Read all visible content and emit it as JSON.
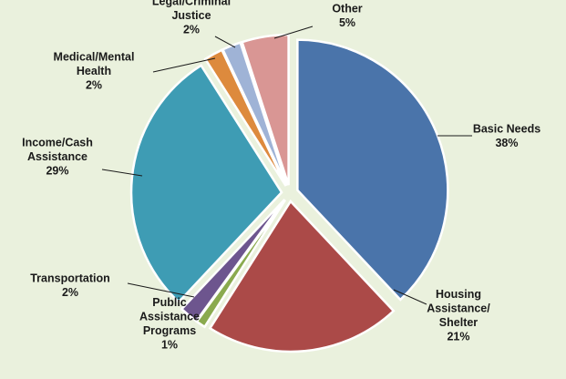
{
  "chart_data": {
    "type": "pie",
    "exploded": true,
    "slices": [
      {
        "name": "Basic Needs",
        "label_lines": [
          "Basic Needs",
          "38%"
        ],
        "value": 38,
        "color": "#4a74aa"
      },
      {
        "name": "Housing Assistance/ Shelter",
        "label_lines": [
          "Housing",
          "Assistance/",
          "Shelter",
          "21%"
        ],
        "value": 21,
        "color": "#ab4a48"
      },
      {
        "name": "Public Assistance Programs",
        "label_lines": [
          "Public",
          "Assistance",
          "Programs",
          "1%"
        ],
        "value": 1,
        "color": "#8aaa4e"
      },
      {
        "name": "Transportation",
        "label_lines": [
          "Transportation",
          "2%"
        ],
        "value": 2,
        "color": "#6d558e"
      },
      {
        "name": "Income/Cash Assistance",
        "label_lines": [
          "Income/Cash",
          "Assistance",
          "29%"
        ],
        "value": 29,
        "color": "#3e9cb4"
      },
      {
        "name": "Medical/Mental Health",
        "label_lines": [
          "Medical/Mental",
          "Health",
          "2%"
        ],
        "value": 2,
        "color": "#dd8a3d"
      },
      {
        "name": "Legal/Criminal Justice",
        "label_lines": [
          "Legal/Criminal",
          "Justice",
          "2%"
        ],
        "value": 2,
        "color": "#9fb3d6"
      },
      {
        "name": "Other",
        "label_lines": [
          "Other",
          "5%"
        ],
        "value": 5,
        "color": "#d99694"
      }
    ]
  }
}
